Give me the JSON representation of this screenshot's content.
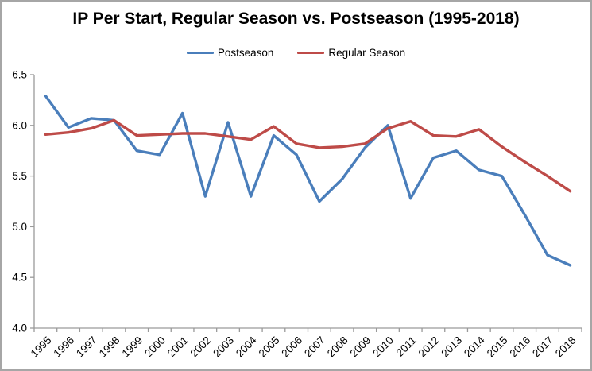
{
  "chart_data": {
    "type": "line",
    "title": "IP Per Start, Regular Season vs. Postseason (1995-2018)",
    "categories": [
      "1995",
      "1996",
      "1997",
      "1998",
      "1999",
      "2000",
      "2001",
      "2002",
      "2003",
      "2004",
      "2005",
      "2006",
      "2007",
      "2008",
      "2009",
      "2010",
      "2011",
      "2012",
      "2013",
      "2014",
      "2015",
      "2016",
      "2017",
      "2018"
    ],
    "series": [
      {
        "name": "Postseason",
        "color": "#4a7ebb",
        "values": [
          6.29,
          5.98,
          6.07,
          6.05,
          5.75,
          5.71,
          6.12,
          5.3,
          6.03,
          5.3,
          5.9,
          5.71,
          5.25,
          5.47,
          5.78,
          6.0,
          5.28,
          5.68,
          5.75,
          5.56,
          5.5,
          5.12,
          4.72,
          4.62
        ]
      },
      {
        "name": "Regular Season",
        "color": "#be4b48",
        "values": [
          5.91,
          5.93,
          5.97,
          6.05,
          5.9,
          5.91,
          5.92,
          5.92,
          5.89,
          5.86,
          5.99,
          5.82,
          5.78,
          5.79,
          5.82,
          5.97,
          6.04,
          5.9,
          5.89,
          5.96,
          5.79,
          5.64,
          5.5,
          5.35
        ]
      }
    ],
    "xlabel": "",
    "ylabel": "",
    "ylim": [
      4.0,
      6.5
    ],
    "ytick_step": 0.5,
    "ytick_labels": [
      "4.0",
      "4.5",
      "5.0",
      "5.5",
      "6.0",
      "6.5"
    ],
    "grid": false,
    "legend_position": "top",
    "x_labels_rotation_deg": -45,
    "axis_color": "#9a9a9a",
    "label_color": "#000000",
    "background_color": "#ffffff",
    "border_color": "#a6a6a6"
  }
}
